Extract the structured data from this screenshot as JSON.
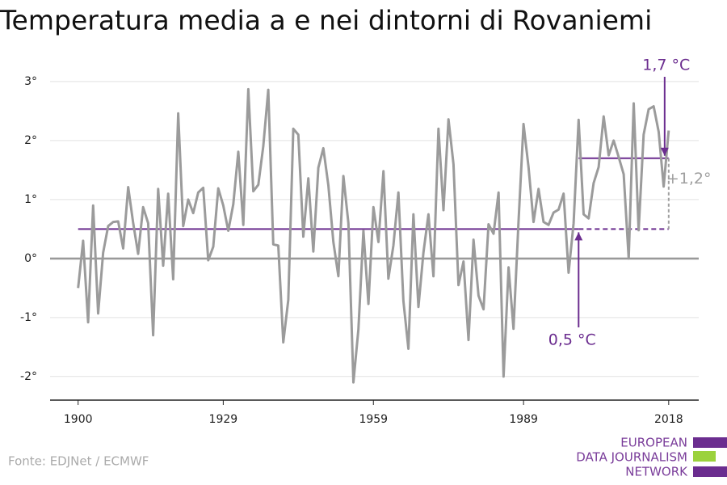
{
  "chart_data": {
    "type": "line",
    "title": "Temperatura media a e nei dintorni di Rovaniemi",
    "source": "Fonte: EDJNet / ECMWF",
    "logo": [
      "EUROPEAN",
      "DATA JOURNALISM",
      "NETWORK"
    ],
    "x": [
      1900,
      1901,
      1902,
      1903,
      1904,
      1905,
      1906,
      1907,
      1908,
      1909,
      1910,
      1911,
      1912,
      1913,
      1914,
      1915,
      1916,
      1917,
      1918,
      1919,
      1920,
      1921,
      1922,
      1923,
      1924,
      1925,
      1926,
      1927,
      1928,
      1929,
      1930,
      1931,
      1932,
      1933,
      1934,
      1935,
      1936,
      1937,
      1938,
      1939,
      1940,
      1941,
      1942,
      1943,
      1944,
      1945,
      1946,
      1947,
      1948,
      1949,
      1950,
      1951,
      1952,
      1953,
      1954,
      1955,
      1956,
      1957,
      1958,
      1959,
      1960,
      1961,
      1962,
      1963,
      1964,
      1965,
      1966,
      1967,
      1968,
      1969,
      1970,
      1971,
      1972,
      1973,
      1974,
      1975,
      1976,
      1977,
      1978,
      1979,
      1980,
      1981,
      1982,
      1983,
      1984,
      1985,
      1986,
      1987,
      1988,
      1989,
      1990,
      1991,
      1992,
      1993,
      1994,
      1995,
      1996,
      1997,
      1998,
      1999,
      2000,
      2001,
      2002,
      2003,
      2004,
      2005,
      2006,
      2007,
      2008,
      2009,
      2010,
      2011,
      2012,
      2013,
      2014,
      2015,
      2016,
      2017,
      2018
    ],
    "series": [
      {
        "name": "Temperatura media",
        "color": "#9b9b9b",
        "values": [
          -0.5,
          0.3,
          -1.08,
          0.9,
          -0.93,
          0.1,
          0.55,
          0.62,
          0.63,
          0.17,
          1.21,
          0.6,
          0.08,
          0.87,
          0.6,
          -1.3,
          1.18,
          -0.12,
          1.1,
          -0.35,
          2.46,
          0.55,
          1.0,
          0.77,
          1.12,
          1.2,
          -0.03,
          0.2,
          1.19,
          0.9,
          0.47,
          0.92,
          1.81,
          0.57,
          2.87,
          1.14,
          1.25,
          1.9,
          2.86,
          0.24,
          0.22,
          -1.42,
          -0.7,
          2.2,
          2.1,
          0.37,
          1.36,
          0.12,
          1.54,
          1.87,
          1.24,
          0.28,
          -0.3,
          1.4,
          0.6,
          -2.1,
          -1.2,
          0.47,
          -0.77,
          0.87,
          0.28,
          1.48,
          -0.34,
          0.22,
          1.12,
          -0.72,
          -1.53,
          0.75,
          -0.82,
          0.1,
          0.75,
          -0.3,
          2.2,
          0.82,
          2.36,
          1.6,
          -0.45,
          -0.05,
          -1.38,
          0.32,
          -0.63,
          -0.86,
          0.58,
          0.42,
          1.12,
          -2.0,
          -0.15,
          -1.19,
          0.62,
          2.28,
          1.55,
          0.62,
          1.18,
          0.62,
          0.57,
          0.78,
          0.83,
          1.1,
          -0.24,
          0.6,
          2.35,
          0.75,
          0.68,
          1.28,
          1.55,
          2.41,
          1.75,
          2.0,
          1.72,
          1.43,
          0.0,
          2.63,
          0.48,
          2.1,
          2.53,
          2.58,
          2.15,
          1.22,
          2.17
        ]
      }
    ],
    "baseline": {
      "value": 0.5,
      "label": "0,5 °C",
      "x_start": 1900,
      "x_end": 2018,
      "color": "#6b2d8f"
    },
    "recent": {
      "value": 1.7,
      "label": "1,7 °C",
      "x_start": 2000,
      "x_end": 2018,
      "color": "#6b2d8f"
    },
    "difference": {
      "value": 1.2,
      "label": "+1,2°",
      "color": "#a0a0a0"
    },
    "xlim": [
      1894.4,
      2024
    ],
    "ylim": [
      -2.4,
      3.3
    ],
    "xticks": [
      1900,
      1929,
      1959,
      1989,
      2018
    ],
    "yticks": [
      {
        "value": -2,
        "label": "-2°"
      },
      {
        "value": -1,
        "label": "-1°"
      },
      {
        "value": 0,
        "label": "0°"
      },
      {
        "value": 1,
        "label": "1°"
      },
      {
        "value": 2,
        "label": "2°"
      },
      {
        "value": 3,
        "label": "3°"
      }
    ],
    "grid": true
  }
}
